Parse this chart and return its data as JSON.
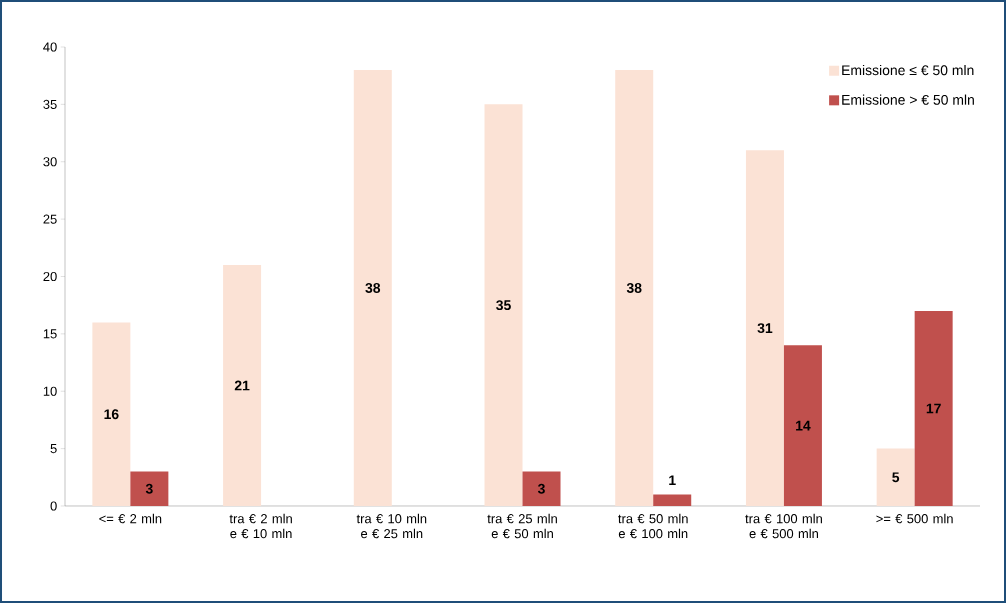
{
  "chart_data": {
    "type": "bar",
    "categories": [
      "<= € 2 mln",
      "tra € 2 mln e € 10 mln",
      "tra € 10 mln e € 25 mln",
      "tra € 25 mln e € 50 mln",
      "tra € 50 mln e € 100 mln",
      "tra € 100 mln e € 500 mln",
      ">= € 500 mln"
    ],
    "series": [
      {
        "name": "Emissione ≤ € 50 mln",
        "color": "#fbe2d5",
        "values": [
          16,
          21,
          38,
          35,
          38,
          31,
          5
        ]
      },
      {
        "name": "Emissione > € 50 mln",
        "color": "#c0504d",
        "values": [
          3,
          null,
          null,
          3,
          1,
          14,
          17
        ]
      }
    ],
    "ylim": [
      0,
      40
    ],
    "yticks": [
      0,
      5,
      10,
      15,
      20,
      25,
      30,
      35,
      40
    ],
    "data_labels": true,
    "legend": "top right",
    "grid": false
  }
}
